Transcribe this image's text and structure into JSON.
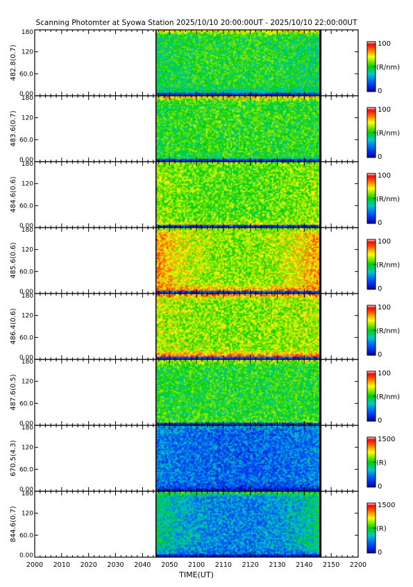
{
  "chart_data": {
    "type": "heatmap",
    "title": "Scanning Photomter at Syowa Station  2025/10/10 20:00:00UT - 2025/10/10 22:00:00UT",
    "xlabel": "TIME(UT)",
    "x_ticks": [
      "2000",
      "2010",
      "2020",
      "2030",
      "2040",
      "2050",
      "2100",
      "2110",
      "2120",
      "2130",
      "2140",
      "2150",
      "2200"
    ],
    "y_ticks": [
      "0.00",
      "60.0",
      "120",
      "180"
    ],
    "data_window": {
      "start": "2045",
      "end": "2146"
    },
    "panels": [
      {
        "ylabel": "482.8(0.7)",
        "colorbar_max": "100",
        "colorbar_min": "0",
        "unit": "(R/nm)",
        "level": 0.5,
        "edge": 0.45,
        "bottom": 0.35,
        "top": 0.7
      },
      {
        "ylabel": "483.6(0.7)",
        "colorbar_max": "100",
        "colorbar_min": "0",
        "unit": "(R/nm)",
        "level": 0.52,
        "edge": 0.5,
        "bottom": 0.45,
        "top": 0.75
      },
      {
        "ylabel": "484.6(0.6)",
        "colorbar_max": "100",
        "colorbar_min": "0",
        "unit": "(R/nm)",
        "level": 0.55,
        "edge": 0.62,
        "bottom": 0.68,
        "top": 0.6
      },
      {
        "ylabel": "485.6(0.6)",
        "colorbar_max": "100",
        "colorbar_min": "0",
        "unit": "(R/nm)",
        "level": 0.6,
        "edge": 0.8,
        "bottom": 0.85,
        "top": 0.62
      },
      {
        "ylabel": "486.4(0.6)",
        "colorbar_max": "100",
        "colorbar_min": "0",
        "unit": "(R/nm)",
        "level": 0.6,
        "edge": 0.65,
        "bottom": 0.92,
        "top": 0.82
      },
      {
        "ylabel": "487.6(0.5)",
        "colorbar_max": "100",
        "colorbar_min": "0",
        "unit": "(R/nm)",
        "level": 0.5,
        "edge": 0.5,
        "bottom": 0.55,
        "top": 0.65
      },
      {
        "ylabel": "670.5(4.3)",
        "colorbar_max": "1500",
        "colorbar_min": "0",
        "unit": "(R)",
        "level": 0.2,
        "edge": 0.26,
        "bottom": 0.12,
        "top": 0.3
      },
      {
        "ylabel": "844.6(0.7)",
        "colorbar_max": "1500",
        "colorbar_min": "0",
        "unit": "(R)",
        "level": 0.25,
        "edge": 0.42,
        "bottom": 0.2,
        "top": 0.5
      }
    ]
  }
}
